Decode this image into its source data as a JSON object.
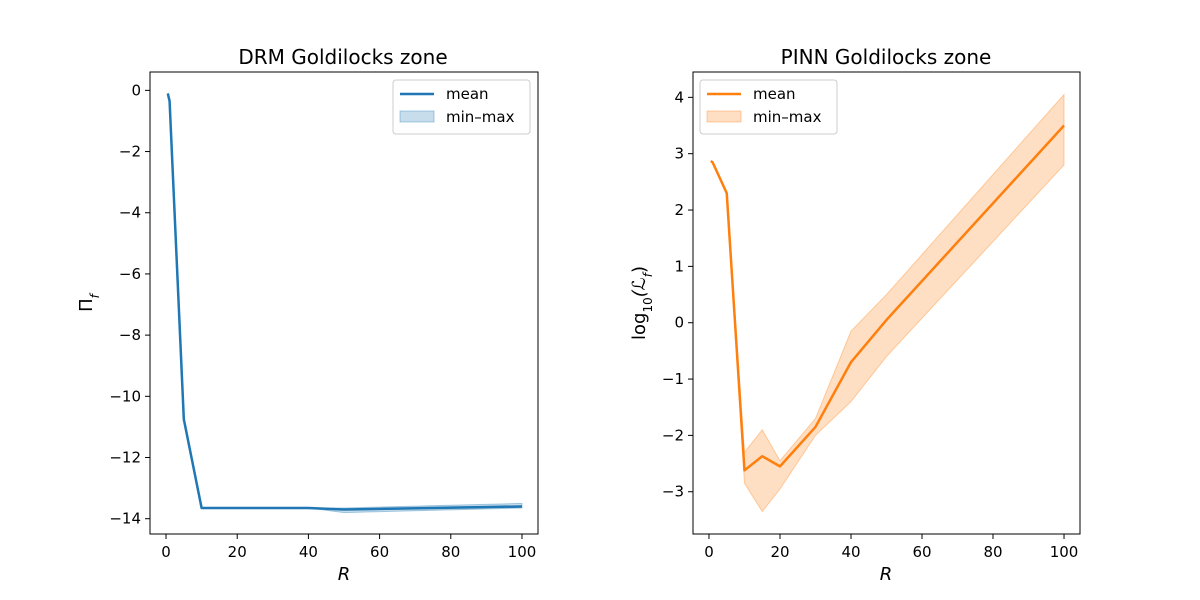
{
  "chart_data": [
    {
      "type": "line",
      "title": "DRM Goldilocks zone",
      "xlabel": "R",
      "ylabel": "Π_f",
      "ylabel_main": "Π",
      "ylabel_sub": "f",
      "xlim": [
        -4.5,
        104.5
      ],
      "ylim": [
        -14.5,
        0.6
      ],
      "xticks": [
        0,
        20,
        40,
        60,
        80,
        100
      ],
      "xtick_labels": [
        "0",
        "20",
        "40",
        "60",
        "80",
        "100"
      ],
      "yticks": [
        0,
        -2,
        -4,
        -6,
        -8,
        -10,
        -12,
        -14
      ],
      "ytick_labels": [
        "0",
        "−2",
        "−4",
        "−6",
        "−8",
        "−10",
        "−12",
        "−14"
      ],
      "grid": false,
      "legend_position": "top-right",
      "legend": [
        "mean",
        "min–max"
      ],
      "color": "#1f77b4",
      "fill_color": "#1f77b4",
      "x": [
        0.5,
        1,
        5,
        10,
        20,
        30,
        40,
        50,
        100
      ],
      "mean": [
        -0.1,
        -0.35,
        -10.75,
        -13.65,
        -13.65,
        -13.65,
        -13.65,
        -13.7,
        -13.6
      ],
      "min": [
        -0.1,
        -0.35,
        -10.75,
        -13.65,
        -13.65,
        -13.65,
        -13.65,
        -13.8,
        -13.65
      ],
      "max": [
        -0.1,
        -0.35,
        -10.75,
        -13.65,
        -13.65,
        -13.65,
        -13.65,
        -13.65,
        -13.5
      ]
    },
    {
      "type": "line",
      "title": "PINN Goldilocks zone",
      "xlabel": "R",
      "ylabel": "log10(ℒ_f)",
      "ylabel_main": "log",
      "ylabel_sub": "10",
      "ylabel_rest": "(ℒ",
      "ylabel_sub2": "f",
      "ylabel_end": ")",
      "xlim": [
        -4.5,
        104.5
      ],
      "ylim": [
        -3.75,
        4.45
      ],
      "xticks": [
        0,
        20,
        40,
        60,
        80,
        100
      ],
      "xtick_labels": [
        "0",
        "20",
        "40",
        "60",
        "80",
        "100"
      ],
      "yticks": [
        4,
        3,
        2,
        1,
        0,
        -1,
        -2,
        -3
      ],
      "ytick_labels": [
        "4",
        "3",
        "2",
        "1",
        "0",
        "−1",
        "−2",
        "−3"
      ],
      "grid": false,
      "legend_position": "top-left",
      "legend": [
        "mean",
        "min–max"
      ],
      "color": "#ff7f0e",
      "fill_color": "#ff7f0e",
      "x": [
        0.5,
        1,
        5,
        10,
        15,
        20,
        30,
        40,
        50,
        100
      ],
      "mean": [
        2.87,
        2.85,
        2.3,
        -2.62,
        -2.37,
        -2.55,
        -1.85,
        -0.7,
        0.05,
        3.5
      ],
      "min": [
        2.87,
        2.85,
        2.3,
        -2.85,
        -3.35,
        -2.95,
        -2.0,
        -1.4,
        -0.6,
        2.8
      ],
      "max": [
        2.87,
        2.85,
        2.3,
        -2.3,
        -1.9,
        -2.45,
        -1.7,
        -0.15,
        0.5,
        4.05
      ]
    }
  ]
}
